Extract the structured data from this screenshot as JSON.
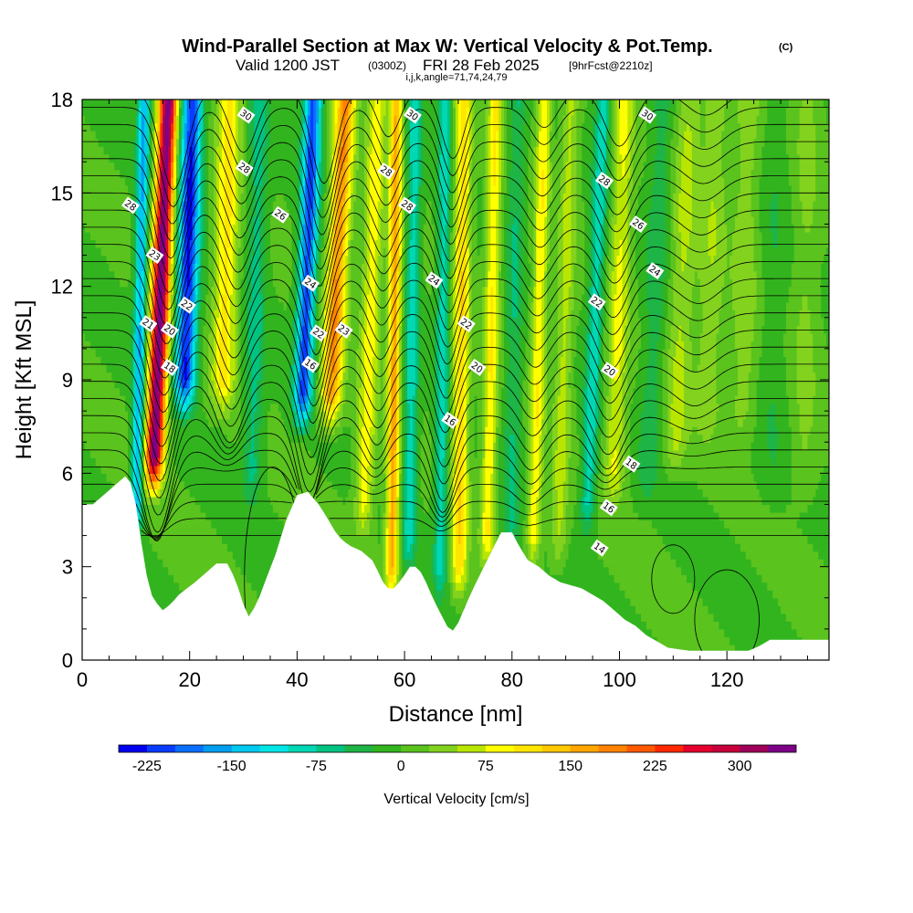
{
  "title": {
    "main": "Wind-Parallel Section at Max W: Vertical Velocity & Pot.Temp.",
    "copyright": "(C)",
    "valid_prefix": "Valid 1200 JST",
    "valid_utc": "(0300Z)",
    "valid_date": "FRI 28 Feb 2025",
    "forecast": "[9hrFcst@2210z]",
    "params": "i,j,k,angle=71,74,24,79"
  },
  "chart_data": {
    "type": "heatmap",
    "xlabel": "Distance [nm]",
    "ylabel": "Height [Kft MSL]",
    "xlim": [
      0,
      139
    ],
    "ylim": [
      0,
      18
    ],
    "xticks": [
      "0",
      "20",
      "40",
      "60",
      "80",
      "100",
      "120"
    ],
    "yticks": [
      "0",
      "3",
      "6",
      "9",
      "12",
      "15",
      "18"
    ],
    "colorbar": {
      "label": "Vertical Velocity [cm/s]",
      "tick_labels": [
        "-225",
        "-150",
        "-75",
        "0",
        "75",
        "150",
        "225",
        "300"
      ],
      "levels": [
        -250,
        -225,
        -200,
        -175,
        -150,
        -125,
        -100,
        -75,
        -50,
        -25,
        0,
        25,
        50,
        75,
        100,
        125,
        150,
        175,
        200,
        225,
        250,
        275,
        300,
        325,
        350
      ],
      "colors": [
        "#0000f0",
        "#0a3cff",
        "#0a6eff",
        "#009ef0",
        "#00c8f0",
        "#00e6e6",
        "#00d7b4",
        "#00c382",
        "#1eb446",
        "#32b41e",
        "#5ac31e",
        "#82d21e",
        "#b9e600",
        "#ffff00",
        "#ffe600",
        "#ffc800",
        "#ffa500",
        "#ff8200",
        "#ff5a00",
        "#ff2800",
        "#e6002d",
        "#c8003c",
        "#a0005a",
        "#7d0087"
      ]
    },
    "contour_field": "Potential temperature",
    "contour_labels": [
      {
        "x": 9,
        "y": 14.6,
        "label": "28"
      },
      {
        "x": 13.5,
        "y": 13.0,
        "label": "23"
      },
      {
        "x": 12.3,
        "y": 10.8,
        "label": "21"
      },
      {
        "x": 16.3,
        "y": 10.6,
        "label": "20"
      },
      {
        "x": 19.5,
        "y": 11.4,
        "label": "22"
      },
      {
        "x": 16.3,
        "y": 9.4,
        "label": "18"
      },
      {
        "x": 30.5,
        "y": 17.5,
        "label": "30"
      },
      {
        "x": 30.2,
        "y": 15.8,
        "label": "28"
      },
      {
        "x": 36.9,
        "y": 14.3,
        "label": "26"
      },
      {
        "x": 42.5,
        "y": 12.1,
        "label": "24"
      },
      {
        "x": 44,
        "y": 10.5,
        "label": "22"
      },
      {
        "x": 48.7,
        "y": 10.6,
        "label": "23"
      },
      {
        "x": 42.5,
        "y": 9.5,
        "label": "16"
      },
      {
        "x": 61.5,
        "y": 17.5,
        "label": "30"
      },
      {
        "x": 56.6,
        "y": 15.7,
        "label": "28"
      },
      {
        "x": 60.5,
        "y": 14.6,
        "label": "28"
      },
      {
        "x": 65.5,
        "y": 12.2,
        "label": "24"
      },
      {
        "x": 71.5,
        "y": 10.8,
        "label": "22"
      },
      {
        "x": 73.5,
        "y": 9.4,
        "label": "20"
      },
      {
        "x": 68.5,
        "y": 7.7,
        "label": "16"
      },
      {
        "x": 105.2,
        "y": 17.5,
        "label": "30"
      },
      {
        "x": 97.2,
        "y": 15.4,
        "label": "28"
      },
      {
        "x": 103.5,
        "y": 14.0,
        "label": "26"
      },
      {
        "x": 106.6,
        "y": 12.5,
        "label": "24"
      },
      {
        "x": 95.8,
        "y": 11.5,
        "label": "22"
      },
      {
        "x": 98.2,
        "y": 9.3,
        "label": "20"
      },
      {
        "x": 102.2,
        "y": 6.3,
        "label": "18"
      },
      {
        "x": 98,
        "y": 4.9,
        "label": "16"
      },
      {
        "x": 96.3,
        "y": 3.6,
        "label": "14"
      }
    ]
  },
  "colors": {
    "background": "#ffffff",
    "terrain": "#ffffff",
    "contour": "#000000",
    "frame": "#000000"
  }
}
